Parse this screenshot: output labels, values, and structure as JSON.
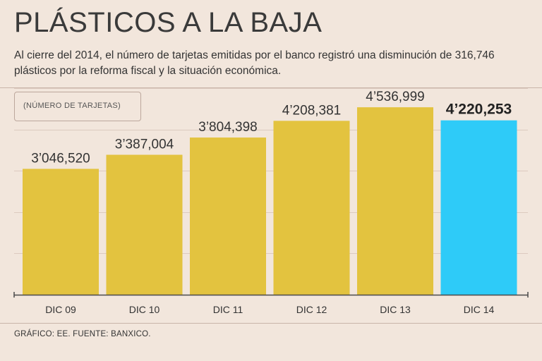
{
  "header": {
    "title": "PLÁSTICOS A LA BAJA",
    "subtitle": "Al cierre del 2014, el número de tarjetas emitidas por el banco registró una disminución de 316,746 plásticos por la reforma fiscal y la situación económica."
  },
  "unit_label": "(NÚMERO DE TARJETAS)",
  "footer": {
    "source": "GRÁFICO: EE. FUENTE: BANXICO."
  },
  "colors": {
    "background": "#f2e6dc",
    "bar": "#e3c33f",
    "highlight_bar": "#2ecbf8",
    "grid": "#dccabf",
    "axis": "#4a4a4a"
  },
  "chart_data": {
    "type": "bar",
    "categories": [
      "DIC 09",
      "DIC 10",
      "DIC 11",
      "DIC 12",
      "DIC 13",
      "DIC 14"
    ],
    "values": [
      3046520,
      3387004,
      3804398,
      4208381,
      4536999,
      4220253
    ],
    "value_labels": [
      "3’046,520",
      "3’387,004",
      "3’804,398",
      "4’208,381",
      "4’536,999",
      "4’220,253"
    ],
    "highlight_index": 5,
    "ylim": [
      0,
      5000000
    ],
    "grid": true,
    "title": "",
    "xlabel": "",
    "ylabel": ""
  }
}
